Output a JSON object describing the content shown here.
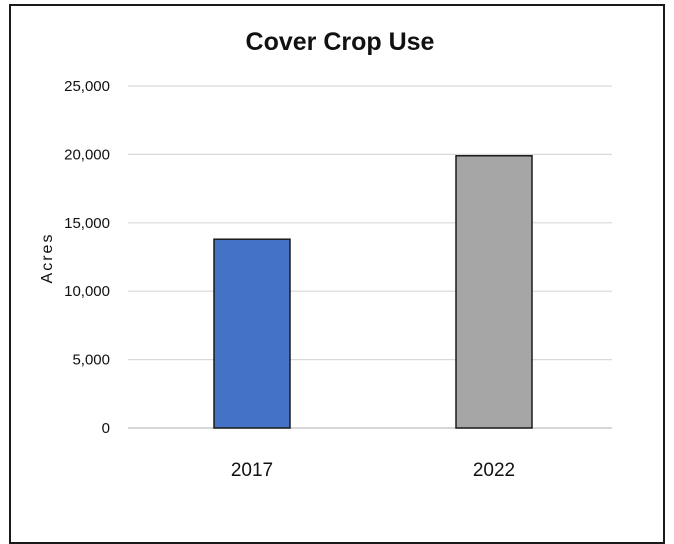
{
  "chart_data": {
    "type": "bar",
    "title": "Cover Crop Use",
    "xlabel": "",
    "ylabel": "Acres",
    "categories": [
      "2017",
      "2022"
    ],
    "values": [
      13800,
      19900
    ],
    "ylim": [
      0,
      25000
    ],
    "yticks": [
      0,
      5000,
      10000,
      15000,
      20000,
      25000
    ],
    "ytick_labels": [
      "0",
      "5,000",
      "10,000",
      "15,000",
      "20,000",
      "25,000"
    ],
    "bar_colors": [
      "#4472c4",
      "#a6a6a6"
    ],
    "grid": true,
    "legend": "none"
  }
}
